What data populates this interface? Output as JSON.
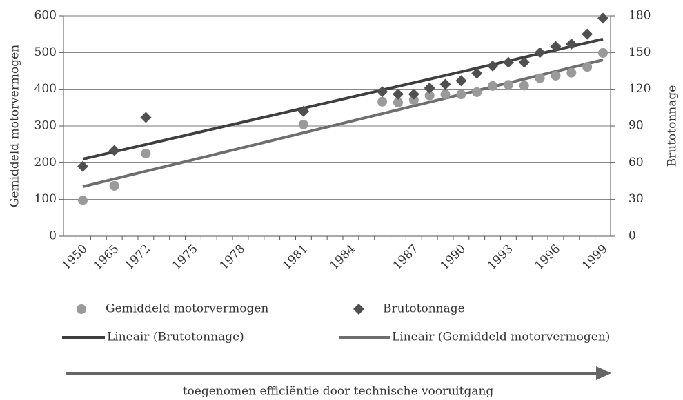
{
  "chart_data": {
    "type": "scatter",
    "categories": [
      "1950",
      null,
      "1965",
      null,
      "1972",
      null,
      null,
      "1975",
      null,
      null,
      "1978",
      null,
      null,
      null,
      "1981",
      null,
      null,
      "1984",
      null,
      null,
      null,
      "1987",
      null,
      null,
      "1990",
      null,
      null,
      "1993",
      null,
      null,
      "1996",
      null,
      null,
      "1999"
    ],
    "series": [
      {
        "name": "Gemiddeld motorvermogen",
        "color": "#9a9a9a",
        "marker": "circle",
        "values": [
          97,
          null,
          137,
          null,
          225,
          null,
          null,
          null,
          null,
          null,
          null,
          null,
          null,
          null,
          304,
          null,
          null,
          null,
          null,
          366,
          364,
          371,
          383,
          386,
          386,
          392,
          409,
          412,
          410,
          430,
          437,
          445,
          461,
          499
        ]
      },
      {
        "name": "Brutotonnage",
        "color": "#505050",
        "marker": "diamond",
        "axis": "y2",
        "values": [
          57,
          null,
          70,
          null,
          97,
          null,
          null,
          null,
          null,
          null,
          null,
          null,
          null,
          null,
          102,
          null,
          null,
          null,
          null,
          118,
          116,
          116,
          121,
          124,
          127,
          133,
          139,
          142,
          142,
          150,
          155,
          157,
          165,
          178
        ]
      }
    ],
    "trendlines": [
      {
        "name": "Lineair (Brutotonnage)",
        "color": "#3e3e3e",
        "axis": "y2",
        "values": [
          63,
          161
        ]
      },
      {
        "name": "Lineair (Gemiddeld motorvermogen)",
        "color": "#6e6e6e",
        "values": [
          135,
          480
        ]
      }
    ],
    "ylabel": "Gemiddeld motorvermogen",
    "y2label": "Brutotonnage",
    "ylim": [
      0,
      600
    ],
    "yticks": [
      0,
      100,
      200,
      300,
      400,
      500,
      600
    ],
    "y2lim": [
      0,
      180
    ],
    "y2ticks": [
      0,
      30,
      60,
      90,
      120,
      150,
      180
    ],
    "grid": true,
    "annotation": "toegenomen efficiëntie door technische vooruitgang"
  }
}
